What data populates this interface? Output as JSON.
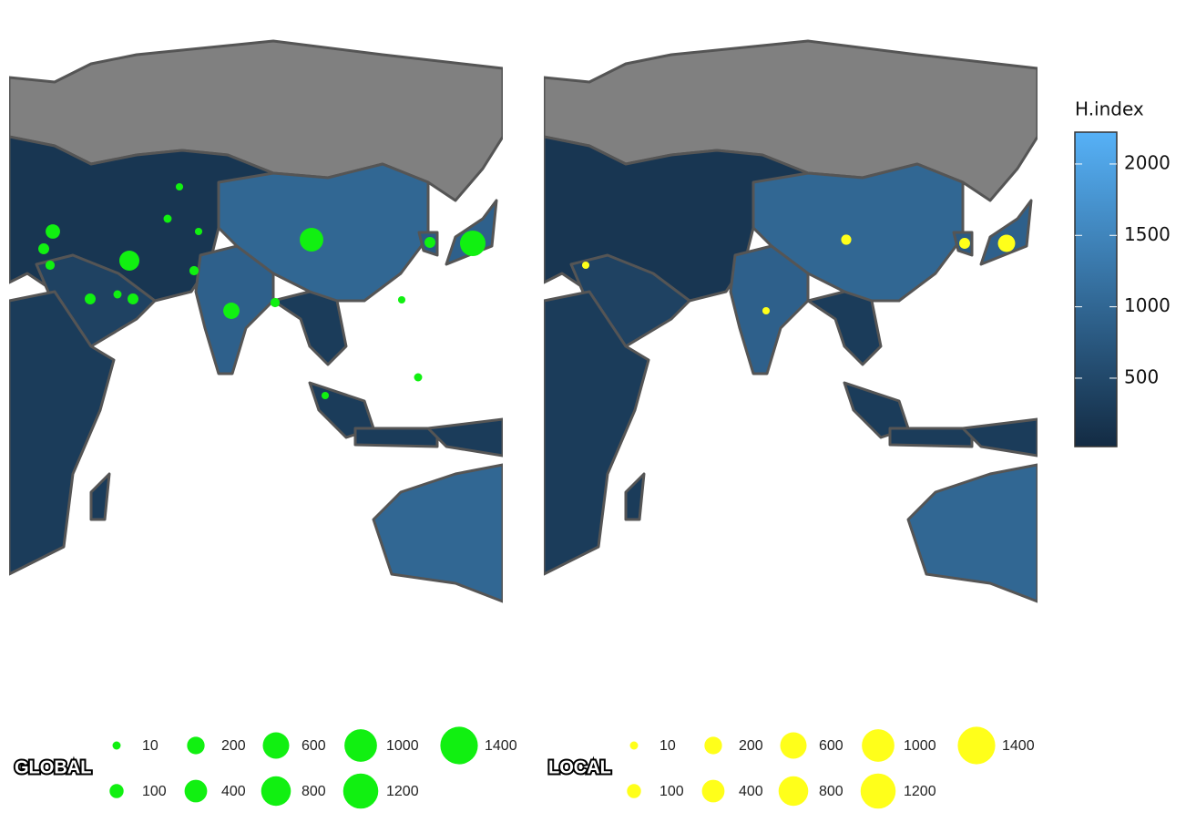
{
  "panels": [
    {
      "title": "GLOBAL",
      "color": "#11f011",
      "bubbles": [
        550,
        450,
        290,
        160,
        110,
        40,
        20,
        40,
        20,
        40,
        10,
        40,
        20,
        5,
        10,
        5,
        5,
        5,
        10
      ],
      "legend_values": [
        10,
        100,
        200,
        400,
        600,
        800,
        1000,
        1200,
        1400
      ]
    },
    {
      "title": "LOCAL",
      "color": "#ffff1a",
      "bubbles": [
        190,
        30,
        40,
        5,
        5
      ],
      "legend_values": [
        10,
        100,
        200,
        400,
        600,
        800,
        1000,
        1200,
        1400
      ]
    }
  ],
  "map": {
    "region_values": [
      null,
      200,
      400,
      300,
      1000,
      900,
      300,
      300,
      300,
      900,
      800,
      1000,
      300,
      300
    ]
  },
  "colorbar": {
    "title": "H.index",
    "lim": [
      21,
      2223
    ],
    "ticks": [
      500,
      1000,
      1500,
      2000
    ],
    "colors": [
      "#132B43",
      "#56B1F7"
    ]
  }
}
